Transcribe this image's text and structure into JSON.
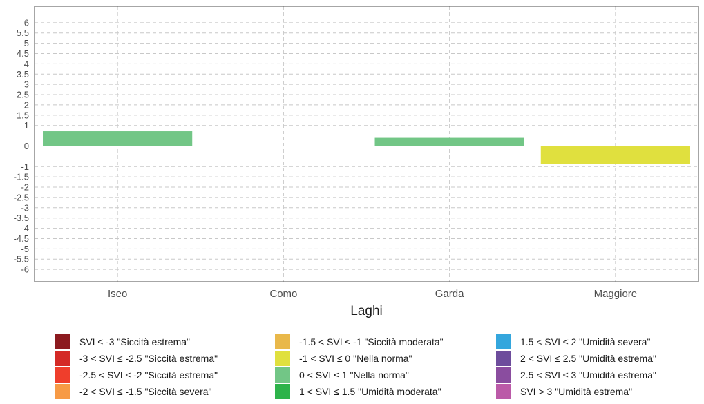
{
  "chart_data": {
    "type": "bar",
    "xlabel": "Laghi",
    "ylabel": "",
    "categories": [
      "Iseo",
      "Como",
      "Garda",
      "Maggiore"
    ],
    "values": [
      0.72,
      0.0,
      0.4,
      -0.88
    ],
    "bar_colors": [
      "#72c686",
      "#e0e03e",
      "#72c686",
      "#e0e03e"
    ],
    "ylim": [
      -6.6,
      6.8
    ],
    "y_ticks": [
      "-6",
      "-5.5",
      "-5",
      "-4.5",
      "-4",
      "-3.5",
      "-3",
      "-2.5",
      "-2",
      "-1.5",
      "-1",
      "0",
      "1",
      "1.5",
      "2",
      "2.5",
      "3",
      "3.5",
      "4",
      "4.5",
      "5",
      "5.5",
      "6"
    ],
    "grid": true,
    "legend_position": "bottom",
    "legend": [
      {
        "label": "SVI ≤ -3 \"Siccità estrema\"",
        "color": "#8c1a1f"
      },
      {
        "label": "-3 <  SVI ≤ -2.5 \"Siccità estrema\"",
        "color": "#d42a26"
      },
      {
        "label": "-2.5 <  SVI ≤ -2 \"Siccità estrema\"",
        "color": "#ef3e2c"
      },
      {
        "label": "-2 <  SVI ≤ -1.5 \"Siccità severa\"",
        "color": "#f79a45"
      },
      {
        "label": "-1.5 <  SVI ≤ -1 \"Siccità moderata\"",
        "color": "#e9b84a"
      },
      {
        "label": "-1 <  SVI ≤ 0 \"Nella norma\"",
        "color": "#e0e03e"
      },
      {
        "label": "0 <  SVI ≤ 1 \"Nella norma\"",
        "color": "#72c686"
      },
      {
        "label": "1 <  SVI ≤ 1.5 \"Umidità moderata\"",
        "color": "#2db34a"
      },
      {
        "label": "1.5 <  SVI ≤ 2 \"Umidità severa\"",
        "color": "#34a6dd"
      },
      {
        "label": "2 <  SVI ≤ 2.5 \"Umidità estrema\"",
        "color": "#6d4d9c"
      },
      {
        "label": "2.5 <  SVI ≤ 3 \"Umidità estrema\"",
        "color": "#8a4d9f"
      },
      {
        "label": "SVI > 3 \"Umidità estrema\"",
        "color": "#bb5aa8"
      }
    ]
  }
}
